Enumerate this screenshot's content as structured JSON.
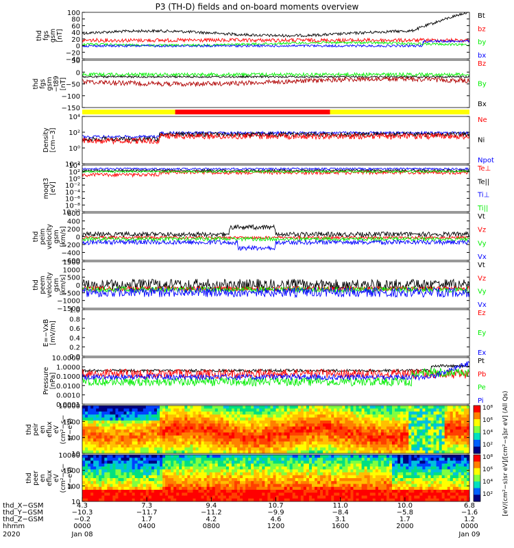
{
  "title": "P3 (TH-D) fields and on-board moments overview",
  "colors": {
    "black": "#000000",
    "red": "#ff0000",
    "green": "#00ee00",
    "blue": "#0000ff",
    "darkred": "#b00000",
    "yellow": "#ffff00"
  },
  "chart_data": [
    {
      "type": "line",
      "name": "fgs_gsm",
      "ylabel": [
        "thd",
        "fgs",
        "gsm",
        "[nT]"
      ],
      "yticks": [
        "100",
        "80",
        "60",
        "40",
        "20",
        "0",
        "−20",
        "−40"
      ],
      "legend": [
        {
          "label": "Bt",
          "color": "#000000"
        },
        {
          "label": "bz",
          "color": "#ff0000"
        },
        {
          "label": "by",
          "color": "#00ee00"
        },
        {
          "label": "bx",
          "color": "#0000ff"
        }
      ]
    },
    {
      "type": "line",
      "name": "fgs_gsm_t89",
      "ylabel": [
        "thd",
        "fgs",
        "gsm",
        "−t89",
        "[nT]"
      ],
      "yticks": [
        "50",
        "0",
        "−50",
        "−100",
        "−150"
      ],
      "legend": [
        {
          "label": "Bz",
          "color": "#ff0000"
        },
        {
          "label": "By",
          "color": "#00ee00"
        },
        {
          "label": "Bx",
          "color": "#000000"
        }
      ]
    },
    {
      "type": "bar",
      "name": "mode_bar"
    },
    {
      "type": "line",
      "name": "density",
      "ylabel": [
        "Density",
        "[cm−3]"
      ],
      "yticks": [
        "10⁴",
        "10²",
        "10⁰",
        "10⁻²"
      ],
      "legend": [
        {
          "label": "Ne",
          "color": "#ff0000"
        },
        {
          "label": "Ni",
          "color": "#000000"
        },
        {
          "label": "Npot",
          "color": "#0000ff"
        }
      ]
    },
    {
      "type": "line",
      "name": "temperature",
      "ylabel": [
        "moqt3",
        "[eV]"
      ],
      "yticks": [
        "10⁴",
        "10²",
        "10⁰",
        "10⁻²",
        "10⁻⁴",
        "10⁻⁶",
        "10⁻⁸",
        "10⁻¹⁰"
      ],
      "legend": [
        {
          "label": "Te⊥",
          "color": "#ff0000"
        },
        {
          "label": "Te||",
          "color": "#000000"
        },
        {
          "label": "Ti⊥",
          "color": "#0000ff"
        },
        {
          "label": "Ti||",
          "color": "#00ee00"
        }
      ]
    },
    {
      "type": "line",
      "name": "peim_velocity",
      "ylabel": [
        "thd",
        "peim",
        "velocity",
        "gsm",
        "[km/s]"
      ],
      "yticks": [
        "600",
        "400",
        "200",
        "0",
        "−200",
        "−400",
        "−600"
      ],
      "legend": [
        {
          "label": "Vt",
          "color": "#000000"
        },
        {
          "label": "Vz",
          "color": "#ff0000"
        },
        {
          "label": "Vy",
          "color": "#00ee00"
        },
        {
          "label": "Vx",
          "color": "#0000ff"
        }
      ]
    },
    {
      "type": "line",
      "name": "peem_velocity",
      "ylabel": [
        "thd",
        "peem",
        "velocity",
        "gsm",
        "[km/s]"
      ],
      "yticks": [
        "1500",
        "1000",
        "500",
        "0",
        "−500",
        "−1000",
        "−1500"
      ],
      "legend": [
        {
          "label": "Vt",
          "color": "#000000"
        },
        {
          "label": "Vz",
          "color": "#ff0000"
        },
        {
          "label": "Vy",
          "color": "#00ee00"
        },
        {
          "label": "Vx",
          "color": "#0000ff"
        }
      ]
    },
    {
      "type": "line",
      "name": "efield",
      "ylabel": [
        "E=−VxB",
        "[mV/m]"
      ],
      "yticks": [
        "1.0",
        "0.8",
        "0.6",
        "0.4",
        "0.2",
        "0.0"
      ],
      "legend": [
        {
          "label": "Ez",
          "color": "#ff0000"
        },
        {
          "label": "Ey",
          "color": "#00ee00"
        },
        {
          "label": "Ex",
          "color": "#0000ff"
        }
      ]
    },
    {
      "type": "line",
      "name": "pressure",
      "ylabel": [
        "Pressure",
        "[nPa]"
      ],
      "yticks": [
        "10.0000",
        "1.0000",
        "0.1000",
        "0.0100",
        "0.0010",
        "0.0001"
      ],
      "legend": [
        {
          "label": "Pt",
          "color": "#000000"
        },
        {
          "label": "Pb",
          "color": "#ff0000"
        },
        {
          "label": "Pe",
          "color": "#00ee00"
        },
        {
          "label": "Pi",
          "color": "#0000ff"
        }
      ]
    },
    {
      "type": "heatmap",
      "name": "peir_eflux",
      "ylabel": [
        "thd",
        "peir",
        "en",
        "eflux",
        "eV",
        "(cm²−s−",
        "sr−eV)"
      ],
      "yticks": [
        "10000",
        "1000",
        "100",
        "10"
      ]
    },
    {
      "type": "heatmap",
      "name": "peer_eflux",
      "ylabel": [
        "thd",
        "peer",
        "en",
        "eflux",
        "eV",
        "(cm²−s−",
        "sr−eV)"
      ],
      "yticks": [
        "10000",
        "1000",
        "100",
        "10"
      ]
    }
  ],
  "colorbar": {
    "ticks": [
      "10⁸",
      "10⁶",
      "10⁴",
      "10²",
      "10⁸",
      "10⁶",
      "10⁴",
      "10²"
    ],
    "label": "[eV/(cm²−s)sr eV]/[cm²−s]sr eV] (All Qs)"
  },
  "xaxis": {
    "row_labels": [
      "thd_X−GSM",
      "thd_Y−GSM",
      "thd_Z−GSM",
      "hhmm",
      "2020"
    ],
    "columns": [
      [
        "4.3",
        "−10.3",
        "−0.2",
        "0000",
        "Jan 08"
      ],
      [
        "7.3",
        "−11.7",
        "1.7",
        "0400",
        ""
      ],
      [
        "9.4",
        "−11.2",
        "4.2",
        "0800",
        ""
      ],
      [
        "10.7",
        "−9.9",
        "4.6",
        "1200",
        ""
      ],
      [
        "11.0",
        "−8.4",
        "3.1",
        "1600",
        ""
      ],
      [
        "10.0",
        "−5.8",
        "1.7",
        "2000",
        ""
      ],
      [
        "6.8",
        "−1.6",
        "1.2",
        "0000",
        "Jan 09"
      ]
    ]
  }
}
